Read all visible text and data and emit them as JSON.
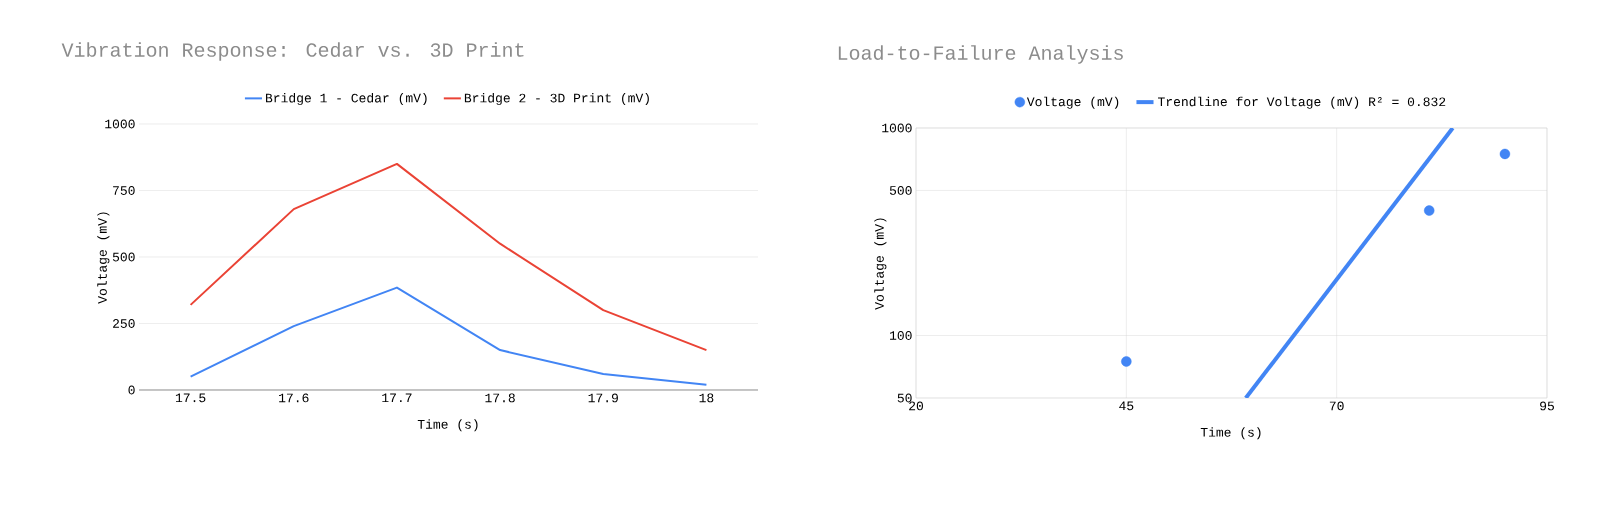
{
  "chart_data": [
    {
      "type": "line",
      "title": "Vibration Response: Cedar vs. 3D Print",
      "xlabel": "Time (s)",
      "ylabel": "Voltage (mV)",
      "x": [
        17.5,
        17.6,
        17.7,
        17.8,
        17.9,
        18
      ],
      "series": [
        {
          "name": "Bridge 1 - Cedar (mV)",
          "color": "#4285f4",
          "values": [
            50,
            240,
            385,
            150,
            60,
            20
          ]
        },
        {
          "name": "Bridge 2 - 3D Print (mV)",
          "color": "#ea4335",
          "values": [
            320,
            680,
            850,
            550,
            300,
            150
          ]
        }
      ],
      "xlim": [
        17.45,
        18.05
      ],
      "xticks": [
        17.5,
        17.6,
        17.7,
        17.8,
        17.9,
        18
      ],
      "ylim": [
        0,
        1000
      ],
      "yticks": [
        0,
        250,
        500,
        750,
        1000
      ],
      "grid": "y",
      "legend": "top",
      "marker": "none",
      "line_style": "solid"
    },
    {
      "type": "scatter",
      "title": "Load-to-Failure Analysis",
      "xlabel": "Time (s)",
      "ylabel": "Voltage (mV)",
      "series": [
        {
          "name": "Voltage (mV)",
          "color": "#4285f4",
          "x": [
            45,
            81,
            90
          ],
          "values": [
            75,
            400,
            750
          ],
          "marker": "circle"
        },
        {
          "name": "Trendline for Voltage (mV) R² = 0.832",
          "type": "line",
          "color": "#4285f4",
          "x": [
            59.2,
            83.8
          ],
          "values": [
            50,
            1000
          ],
          "marker": "none"
        }
      ],
      "xlim": [
        20,
        95
      ],
      "xticks": [
        20,
        45,
        70,
        95
      ],
      "ylim": [
        50,
        1000
      ],
      "yticks": [
        50,
        100,
        500,
        1000
      ],
      "log": "y",
      "grid": true,
      "legend": "top"
    }
  ]
}
